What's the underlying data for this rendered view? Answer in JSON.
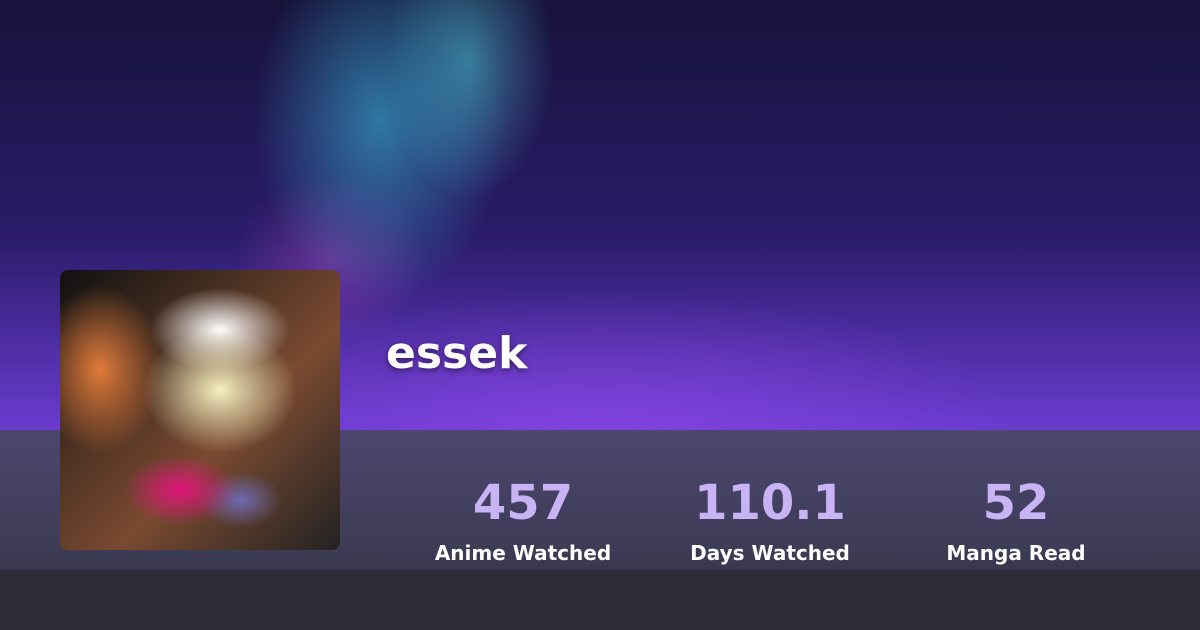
{
  "profile": {
    "username": "essek"
  },
  "stats": [
    {
      "value": "457",
      "label": "Anime Watched"
    },
    {
      "value": "110.1",
      "label": "Days Watched"
    },
    {
      "value": "52",
      "label": "Manga Read"
    }
  ],
  "colors": {
    "stat_value": "#c8b4f5"
  }
}
